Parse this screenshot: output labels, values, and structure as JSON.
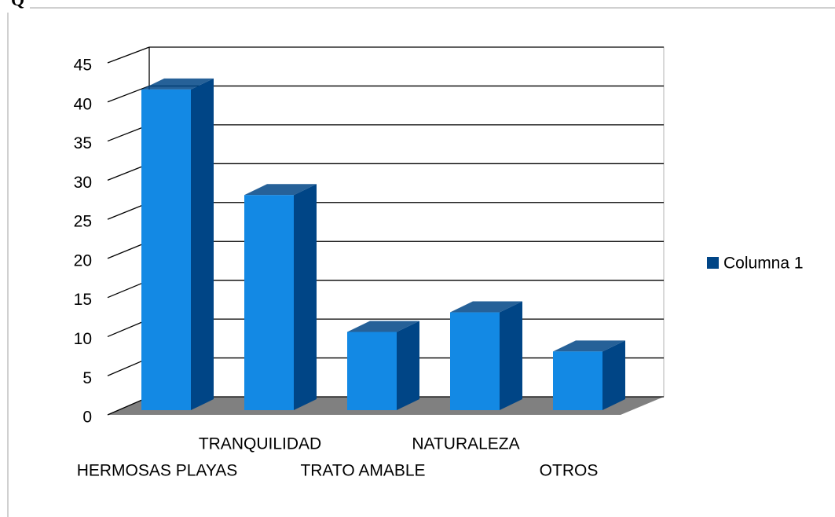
{
  "heading": "Q",
  "chart_data": {
    "type": "bar3d",
    "categories": [
      "HERMOSAS PLAYAS",
      "TRANQUILIDAD",
      "TRATO AMABLE",
      "NATURALEZA",
      "OTROS"
    ],
    "series": [
      {
        "name": "Columna 1",
        "color": "#004586",
        "values": [
          41,
          27.5,
          10,
          12.5,
          7.5
        ]
      }
    ],
    "ylim": [
      0,
      45
    ],
    "yticks": [
      0,
      5,
      10,
      15,
      20,
      25,
      30,
      35,
      40,
      45
    ],
    "grid": true,
    "legend": "right"
  }
}
